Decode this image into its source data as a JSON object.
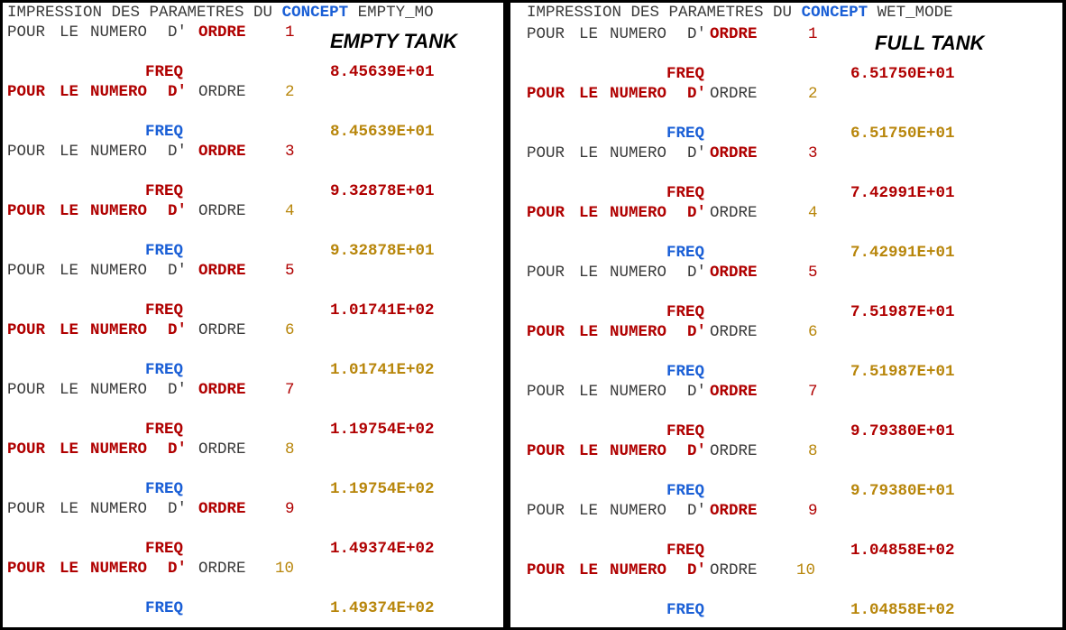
{
  "panels": [
    {
      "header": {
        "prefix": "IMPRESSION DES PARAMETRES DU ",
        "concept": "CONCEPT",
        "name": "EMPTY_MO"
      },
      "tank_label": "EMPTY TANK",
      "order_text": [
        "POUR",
        "LE",
        "NUMERO",
        "D'",
        "ORDRE"
      ],
      "freq_label": "FREQ",
      "orders": [
        "1",
        "2",
        "3",
        "4",
        "5",
        "6",
        "7",
        "8",
        "9",
        "10"
      ],
      "freqs": [
        "8.45639E+01",
        "8.45639E+01",
        "9.32878E+01",
        "9.32878E+01",
        "1.01741E+02",
        "1.01741E+02",
        "1.19754E+02",
        "1.19754E+02",
        "1.49374E+02",
        "1.49374E+02"
      ]
    },
    {
      "header": {
        "prefix": "IMPRESSION DES PARAMETRES DU ",
        "concept": "CONCEPT",
        "name": "WET_MODE"
      },
      "tank_label": "FULL TANK",
      "order_text": [
        "POUR",
        "LE",
        "NUMERO",
        "D'",
        "ORDRE"
      ],
      "freq_label": "FREQ",
      "orders": [
        "1",
        "2",
        "3",
        "4",
        "5",
        "6",
        "7",
        "8",
        "9",
        "10"
      ],
      "freqs": [
        "6.51750E+01",
        "6.51750E+01",
        "7.42991E+01",
        "7.42991E+01",
        "7.51987E+01",
        "7.51987E+01",
        "9.79380E+01",
        "9.79380E+01",
        "1.04858E+02",
        "1.04858E+02"
      ]
    }
  ]
}
